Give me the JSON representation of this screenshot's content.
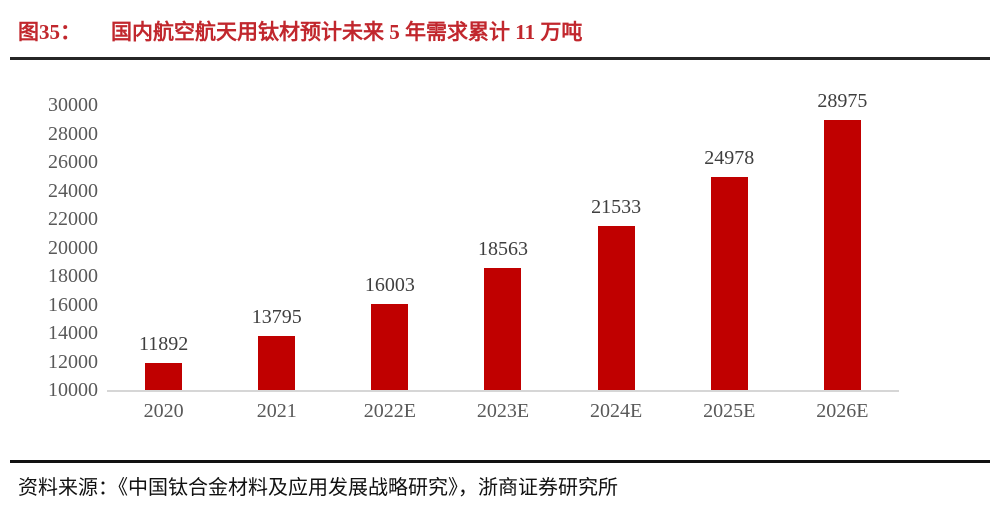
{
  "title": {
    "prefix": "图35：",
    "text": "国内航空航天用钛材预计未来 5 年需求累计 11 万吨"
  },
  "footer": {
    "source": "资料来源：《中国钛合金材料及应用发展战略研究》，浙商证券研究所"
  },
  "colors": {
    "bar": "#C00000",
    "title": "#C1272D",
    "axis_text": "#595959",
    "value_text": "#3F3F3F",
    "baseline": "#D6D6D6"
  },
  "chart_data": {
    "type": "bar",
    "title": "国内航空航天用钛材预计未来 5 年需求累计 11 万吨",
    "categories": [
      "2020",
      "2021",
      "2022E",
      "2023E",
      "2024E",
      "2025E",
      "2026E"
    ],
    "values": [
      11892,
      13795,
      16003,
      18563,
      21533,
      24978,
      28975
    ],
    "xlabel": "",
    "ylabel": "",
    "ylim": [
      10000,
      30000
    ],
    "y_ticks": [
      30000,
      28000,
      26000,
      24000,
      22000,
      20000,
      18000,
      16000,
      14000,
      12000,
      10000
    ],
    "grid": false,
    "legend_position": "none",
    "data_labels": true
  }
}
